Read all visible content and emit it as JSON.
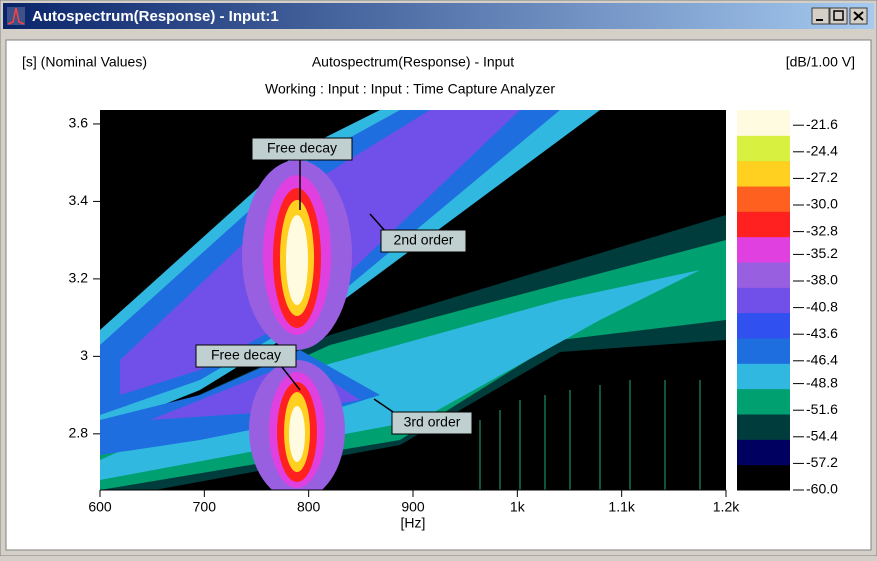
{
  "window": {
    "title": "Autospectrum(Response) - Input:1"
  },
  "chart_data": {
    "type": "heatmap",
    "title": "Autospectrum(Response) - Input",
    "subtitle": "Working : Input : Input : Time Capture Analyzer",
    "y_label": "[s] (Nominal Values)",
    "x_label": "[Hz]",
    "colorbar_label": "[dB/1.00 V]",
    "xlim": [
      600,
      1200
    ],
    "xticks": [
      600,
      700,
      800,
      900,
      {
        "value": 1000,
        "label": "1k"
      },
      {
        "value": 1100,
        "label": "1.1k"
      },
      {
        "value": 1200,
        "label": "1.2k"
      }
    ],
    "ylim": [
      2.655,
      3.636
    ],
    "yticks": [
      2.8,
      3,
      3.2,
      3.4,
      3.6
    ],
    "clim": [
      -60,
      -20
    ],
    "cticks": [
      -21.6,
      -24.4,
      -27.2,
      {
        "value": -30,
        "label": "-30.0"
      },
      -32.8,
      -35.2,
      {
        "value": -38,
        "label": "-38.0"
      },
      -40.8,
      -43.6,
      -46.4,
      -48.8,
      -51.6,
      -54.4,
      -57.2,
      {
        "value": -60,
        "label": "-60.0"
      }
    ],
    "colors": [
      "#000000",
      "#000060",
      "#003c3c",
      "#00a070",
      "#30b8e0",
      "#1e6ee0",
      "#3050f0",
      "#7050e8",
      "#9860e0",
      "#e040e0",
      "#ff2020",
      "#ff6020",
      "#ffd020",
      "#d8f040",
      "#fffbe0"
    ],
    "annotations": [
      "Free decay",
      "2nd order",
      "Free decay",
      "3rd order"
    ]
  }
}
